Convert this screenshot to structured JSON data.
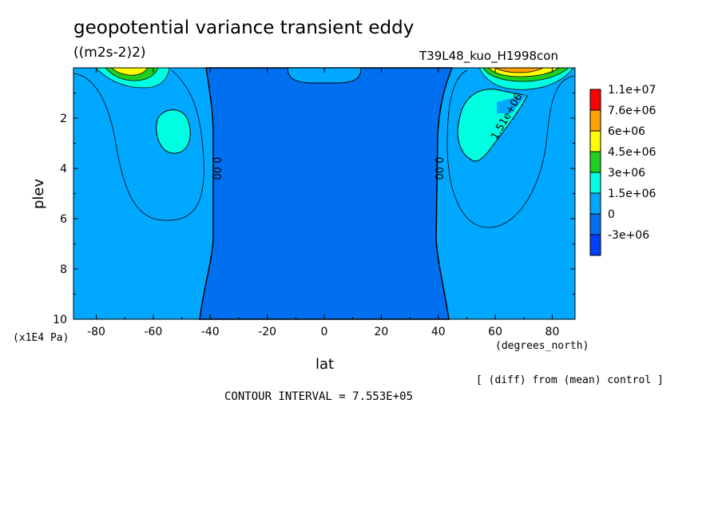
{
  "header": {
    "title": "geopotential variance transient eddy",
    "units": "((m2s-2)2)",
    "run_id": "T39L48_kuo_H1998con"
  },
  "footer": {
    "note": "[ (diff) from (mean) control ]",
    "contour_interval": "CONTOUR INTERVAL = 7.553E+05"
  },
  "chart_data": {
    "type": "heatmap",
    "xlabel": "lat",
    "ylabel": "plev",
    "x_units": "(degrees_north)",
    "y_units": "(x1E4 Pa)",
    "xlim": [
      -88,
      88
    ],
    "ylim": [
      10,
      0
    ],
    "x_ticks": [
      -80,
      -60,
      -40,
      -20,
      0,
      20,
      40,
      60,
      80
    ],
    "x_tick_labels": [
      "-80",
      "-60",
      "-40",
      "-20",
      "0",
      "20",
      "40",
      "60",
      "80"
    ],
    "y_ticks": [
      2,
      4,
      6,
      8,
      10
    ],
    "y_tick_labels": [
      "2",
      "4",
      "6",
      "8",
      "10"
    ],
    "colorbar": {
      "labels": [
        "1.1e+07",
        "7.6e+06",
        "6e+06",
        "4.5e+06",
        "3e+06",
        "1.5e+06",
        "0",
        "-3e+06"
      ],
      "colors": [
        "#ff0000",
        "#ffa000",
        "#ffff00",
        "#20d020",
        "#00ffe0",
        "#00a8ff",
        "#0070f0",
        "#0040ff"
      ]
    },
    "contour_labels": [
      {
        "text": "0.00",
        "lat": -39,
        "plev": 4.0
      },
      {
        "text": "0.00",
        "lat": 39,
        "plev": 4.0
      },
      {
        "text": "1.51e+06",
        "lat": 65,
        "plev": 2.0
      }
    ],
    "regions": {
      "negative_band": {
        "lat_min": -43,
        "lat_max": 43,
        "plev_top": 0,
        "plev_bottom": 10
      },
      "tropical_cap": {
        "lat_min": -12,
        "lat_max": 12,
        "plev_top": 0,
        "plev_bottom": 0.6
      },
      "maxima": [
        {
          "lat": -56,
          "plev": 2.6,
          "level": "1.5e+06"
        },
        {
          "lat": 55,
          "plev": 2.3,
          "level": "1.5e+06"
        },
        {
          "lat": -72,
          "plev": 0.1,
          "level": "7.6e+06"
        },
        {
          "lat": 66,
          "plev": 0.1,
          "level": "7.6e+06"
        }
      ]
    }
  }
}
